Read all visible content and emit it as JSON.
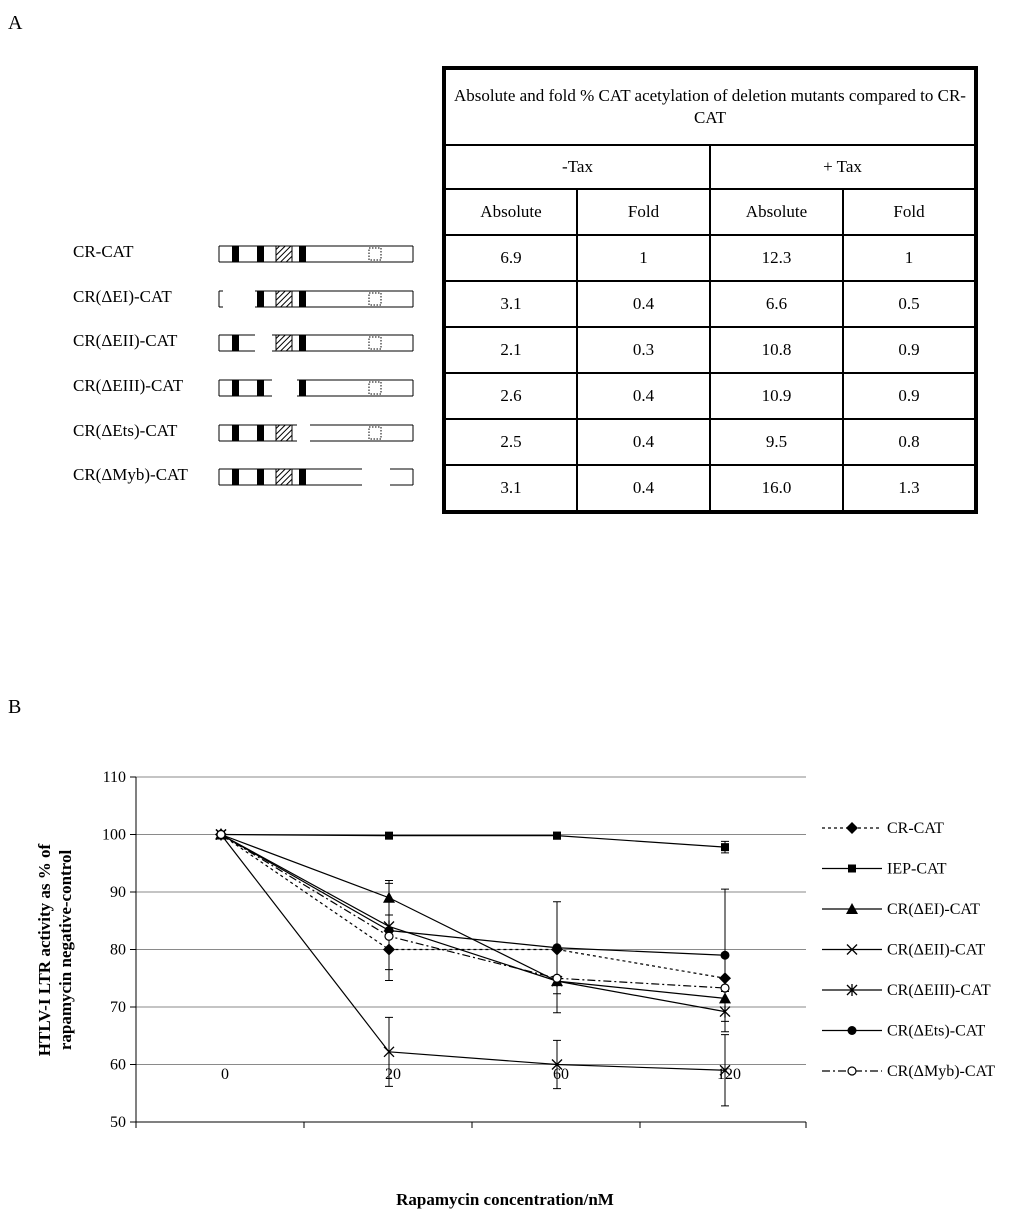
{
  "panel_a": {
    "label": "A",
    "constructs": [
      {
        "name": "CR-CAT",
        "missing": []
      },
      {
        "name": "CR(ΔEI)-CAT",
        "missing": [
          "EI"
        ]
      },
      {
        "name": "CR(ΔEII)-CAT",
        "missing": [
          "EII"
        ]
      },
      {
        "name": "CR(ΔEIII)-CAT",
        "missing": [
          "EIII"
        ]
      },
      {
        "name": "CR(ΔEts)-CAT",
        "missing": [
          "Ets"
        ]
      },
      {
        "name": "CR(ΔMyb)-CAT",
        "missing": [
          "Myb"
        ]
      }
    ],
    "table": {
      "title": "Absolute and fold % CAT acetylation of deletion mutants compared to CR-CAT",
      "groups": [
        "-Tax",
        "+ Tax"
      ],
      "columns": [
        "Absolute",
        "Fold",
        "Absolute",
        "Fold"
      ],
      "rows": [
        [
          "6.9",
          "1",
          "12.3",
          "1"
        ],
        [
          "3.1",
          "0.4",
          "6.6",
          "0.5"
        ],
        [
          "2.1",
          "0.3",
          "10.8",
          "0.9"
        ],
        [
          "2.6",
          "0.4",
          "10.9",
          "0.9"
        ],
        [
          "2.5",
          "0.4",
          "9.5",
          "0.8"
        ],
        [
          "3.1",
          "0.4",
          "16.0",
          "1.3"
        ]
      ]
    }
  },
  "panel_b": {
    "label": "B"
  },
  "chart_data": {
    "type": "line",
    "categories": [
      "0",
      "20",
      "60",
      "120"
    ],
    "xlabel": "Rapamycin concentration/nM",
    "ylabel": "HTLV-I LTR activity as % of rapamycin negative-control",
    "ylim": [
      50,
      110
    ],
    "yticks": [
      50,
      60,
      70,
      80,
      90,
      100,
      110
    ],
    "grid": true,
    "legend_position": "right",
    "series": [
      {
        "name": "CR-CAT",
        "values": [
          100,
          80,
          80,
          75
        ],
        "errors": [
          0,
          0,
          0,
          0
        ],
        "marker": "diamond",
        "dash": "dot"
      },
      {
        "name": "IEP-CAT",
        "values": [
          100,
          99.8,
          99.8,
          97.8
        ],
        "errors": [
          0,
          0,
          0.6,
          1
        ],
        "marker": "square",
        "dash": "solid"
      },
      {
        "name": "CR(ΔEI)-CAT",
        "values": [
          100,
          89,
          74.5,
          71.5
        ],
        "errors": [
          0,
          3,
          0,
          0
        ],
        "marker": "triangle",
        "dash": "solid"
      },
      {
        "name": "CR(ΔEII)-CAT",
        "values": [
          100,
          62.2,
          60,
          59
        ],
        "errors": [
          0,
          6,
          4.2,
          6.2
        ],
        "marker": "x",
        "dash": "solid"
      },
      {
        "name": "CR(ΔEIII)-CAT",
        "values": [
          100,
          84,
          74.5,
          69.2
        ],
        "errors": [
          0,
          7.5,
          5.5,
          3.5
        ],
        "marker": "star",
        "dash": "solid"
      },
      {
        "name": "CR(ΔEts)-CAT",
        "values": [
          100,
          83.3,
          80.3,
          79
        ],
        "errors": [
          0,
          8.7,
          8,
          11.5
        ],
        "marker": "circle",
        "dash": "solid"
      },
      {
        "name": "CR(ΔMyb)-CAT",
        "values": [
          100,
          82.3,
          75,
          73.3
        ],
        "errors": [
          0,
          0,
          0,
          0
        ],
        "marker": "open-circle",
        "dash": "dashdot"
      }
    ]
  }
}
